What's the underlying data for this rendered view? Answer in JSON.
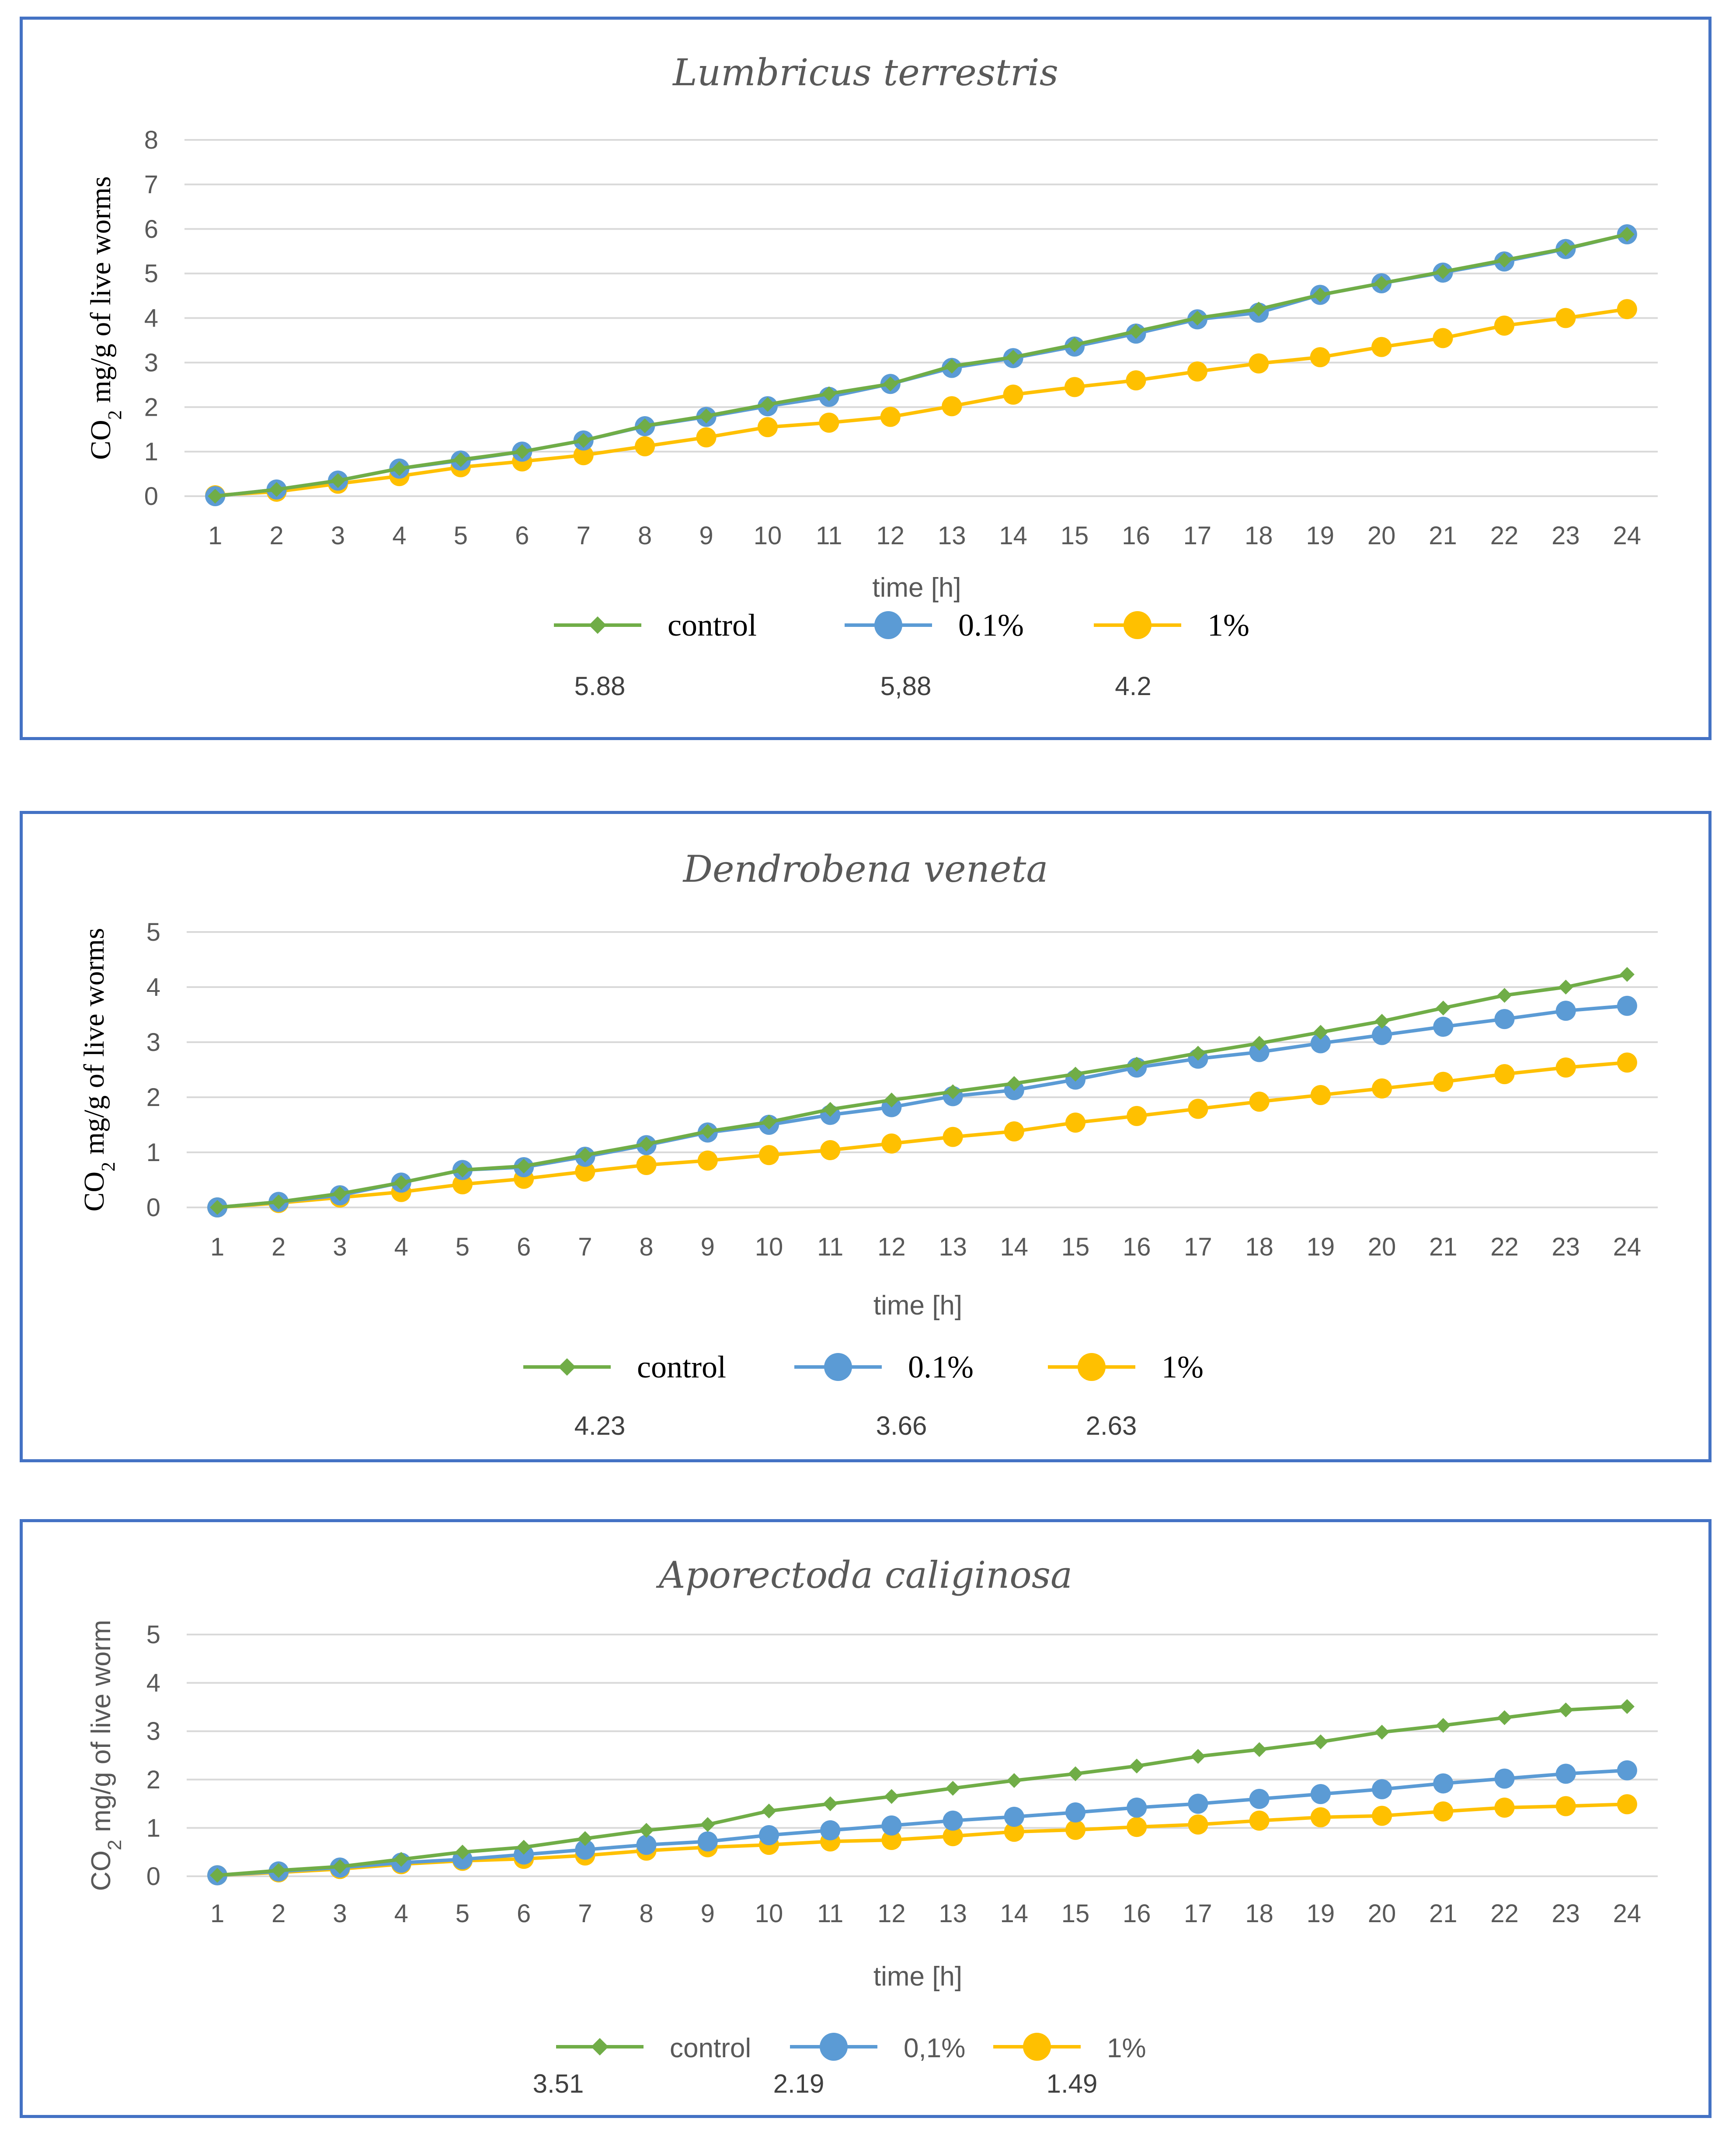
{
  "colors": {
    "control": "#70ad47",
    "p01": "#5b9bd5",
    "p1": "#ffc000",
    "border": "#4472c4"
  },
  "chart_data": [
    {
      "type": "line",
      "title": "Lumbricus terrestris",
      "ylabel": "CO2 mg/g of live worms",
      "ylabel_main": "CO",
      "ylabel_sub": "2",
      "ylabel_rest": " mg/g of live worms",
      "xlabel": "time [h]",
      "ylim": [
        0,
        8
      ],
      "yticks": [
        0,
        1,
        2,
        3,
        4,
        5,
        6,
        7,
        8
      ],
      "x": [
        1,
        2,
        3,
        4,
        5,
        6,
        7,
        8,
        9,
        10,
        11,
        12,
        13,
        14,
        15,
        16,
        17,
        18,
        19,
        20,
        21,
        22,
        23,
        24
      ],
      "series": [
        {
          "name": "control",
          "marker": "diamond",
          "values": [
            0,
            0.15,
            0.35,
            0.62,
            0.82,
            1.0,
            1.25,
            1.58,
            1.8,
            2.06,
            2.3,
            2.52,
            2.92,
            3.12,
            3.4,
            3.7,
            4.0,
            4.2,
            4.52,
            4.78,
            5.04,
            5.3,
            5.56,
            5.88
          ]
        },
        {
          "name": "0.1%",
          "marker": "circle",
          "values": [
            0,
            0.15,
            0.35,
            0.62,
            0.8,
            1.0,
            1.25,
            1.57,
            1.78,
            2.02,
            2.23,
            2.52,
            2.88,
            3.1,
            3.36,
            3.65,
            3.97,
            4.12,
            4.52,
            4.78,
            5.02,
            5.27,
            5.55,
            5.88
          ]
        },
        {
          "name": "1%",
          "marker": "circle",
          "values": [
            0.02,
            0.1,
            0.28,
            0.45,
            0.65,
            0.78,
            0.92,
            1.12,
            1.32,
            1.55,
            1.65,
            1.78,
            2.02,
            2.28,
            2.45,
            2.6,
            2.8,
            2.98,
            3.12,
            3.35,
            3.55,
            3.83,
            4.0,
            4.2
          ]
        }
      ],
      "legend_style": "serif",
      "final_values": [
        "5.88",
        "5,88",
        "4.2"
      ]
    },
    {
      "type": "line",
      "title": "Dendrobena veneta",
      "ylabel": "CO2 mg/g of live worms",
      "ylabel_main": "CO",
      "ylabel_sub": "2",
      "ylabel_rest": " mg/g of live worms",
      "xlabel": "time [h]",
      "ylim": [
        0,
        5
      ],
      "yticks": [
        0,
        1,
        2,
        3,
        4,
        5
      ],
      "x": [
        1,
        2,
        3,
        4,
        5,
        6,
        7,
        8,
        9,
        10,
        11,
        12,
        13,
        14,
        15,
        16,
        17,
        18,
        19,
        20,
        21,
        22,
        23,
        24
      ],
      "series": [
        {
          "name": "control",
          "marker": "diamond",
          "values": [
            0,
            0.1,
            0.25,
            0.45,
            0.68,
            0.75,
            0.95,
            1.15,
            1.38,
            1.55,
            1.78,
            1.95,
            2.1,
            2.25,
            2.42,
            2.6,
            2.8,
            2.98,
            3.18,
            3.38,
            3.62,
            3.85,
            4.0,
            4.23
          ]
        },
        {
          "name": "0.1%",
          "marker": "circle",
          "values": [
            0,
            0.1,
            0.22,
            0.45,
            0.68,
            0.73,
            0.92,
            1.13,
            1.36,
            1.5,
            1.68,
            1.82,
            2.02,
            2.13,
            2.32,
            2.54,
            2.7,
            2.82,
            2.98,
            3.13,
            3.28,
            3.42,
            3.57,
            3.66
          ]
        },
        {
          "name": "1%",
          "marker": "circle",
          "values": [
            0,
            0.08,
            0.18,
            0.28,
            0.42,
            0.52,
            0.65,
            0.77,
            0.85,
            0.95,
            1.04,
            1.16,
            1.28,
            1.38,
            1.54,
            1.66,
            1.79,
            1.92,
            2.04,
            2.16,
            2.28,
            2.42,
            2.54,
            2.63
          ]
        }
      ],
      "legend_style": "serif",
      "final_values": [
        "4.23",
        "3.66",
        "2.63"
      ]
    },
    {
      "type": "line",
      "title": "Aporectoda caliginosa",
      "ylabel": "CO2 mg/g of live worm",
      "ylabel_main": "CO",
      "ylabel_sub": "2",
      "ylabel_rest": " mg/g of live worm",
      "xlabel": "time [h]",
      "ylim": [
        0,
        5
      ],
      "yticks": [
        0,
        1,
        2,
        3,
        4,
        5
      ],
      "x": [
        1,
        2,
        3,
        4,
        5,
        6,
        7,
        8,
        9,
        10,
        11,
        12,
        13,
        14,
        15,
        16,
        17,
        18,
        19,
        20,
        21,
        22,
        23,
        24
      ],
      "series": [
        {
          "name": "control",
          "marker": "diamond",
          "values": [
            0.02,
            0.12,
            0.2,
            0.35,
            0.5,
            0.6,
            0.78,
            0.95,
            1.07,
            1.35,
            1.5,
            1.65,
            1.82,
            1.98,
            2.12,
            2.28,
            2.48,
            2.62,
            2.78,
            2.98,
            3.12,
            3.28,
            3.44,
            3.51
          ]
        },
        {
          "name": "0,1%",
          "marker": "circle",
          "values": [
            0.02,
            0.1,
            0.18,
            0.28,
            0.35,
            0.45,
            0.55,
            0.65,
            0.72,
            0.85,
            0.95,
            1.05,
            1.15,
            1.23,
            1.32,
            1.42,
            1.5,
            1.6,
            1.7,
            1.8,
            1.92,
            2.02,
            2.12,
            2.19
          ]
        },
        {
          "name": "1%",
          "marker": "circle",
          "values": [
            0.02,
            0.08,
            0.15,
            0.25,
            0.32,
            0.36,
            0.43,
            0.53,
            0.6,
            0.65,
            0.72,
            0.75,
            0.83,
            0.92,
            0.96,
            1.02,
            1.07,
            1.15,
            1.22,
            1.25,
            1.34,
            1.42,
            1.45,
            1.49
          ]
        }
      ],
      "legend_style": "sans",
      "final_values": [
        "3.51",
        "2.19",
        "1.49"
      ]
    }
  ]
}
